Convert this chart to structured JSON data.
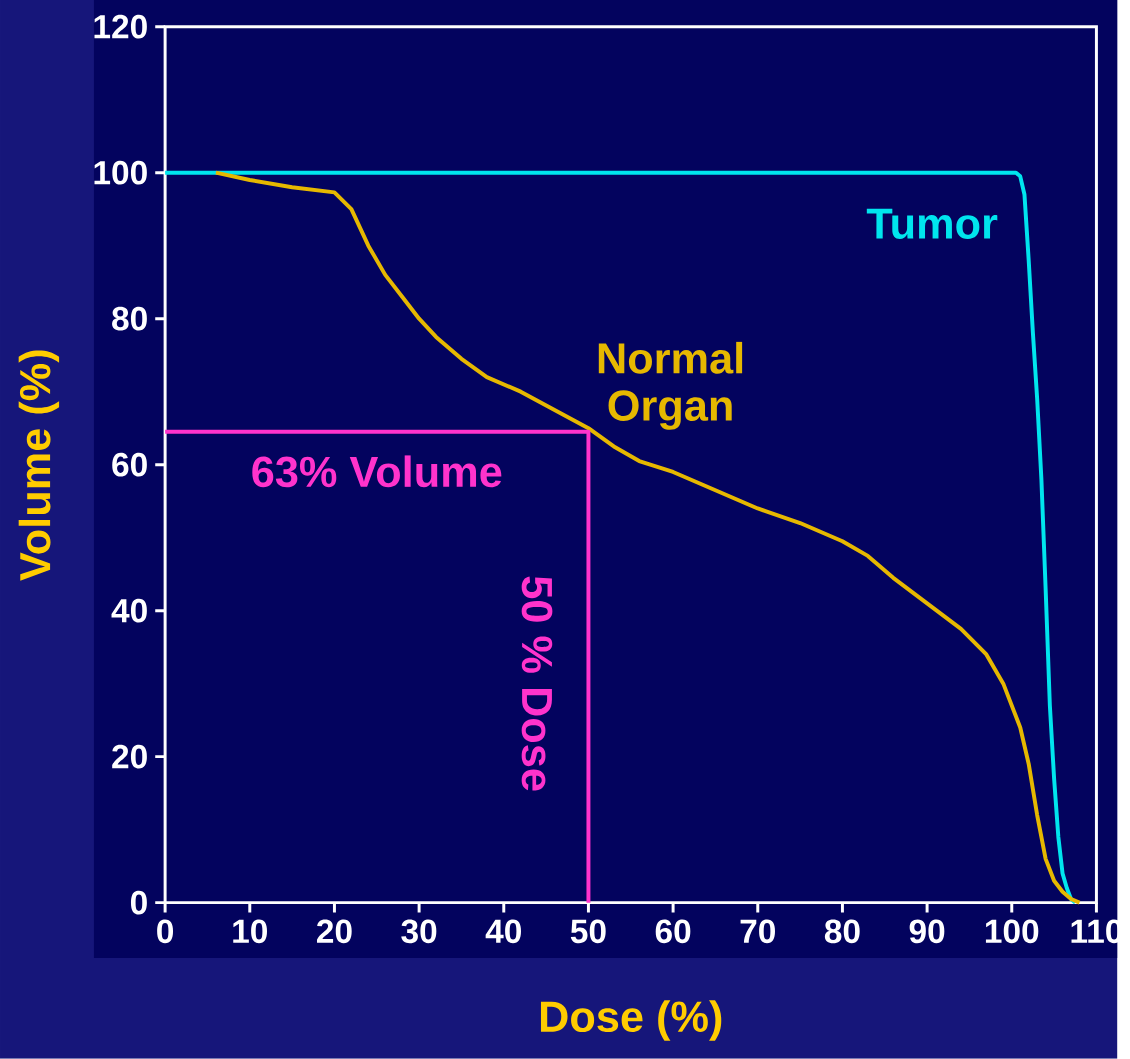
{
  "chart_data": {
    "type": "line",
    "xlabel": "Dose (%)",
    "ylabel": "Volume (%)",
    "xlim": [
      0,
      110
    ],
    "ylim": [
      0,
      120
    ],
    "xticks": [
      0,
      10,
      20,
      30,
      40,
      50,
      60,
      70,
      80,
      90,
      100,
      110
    ],
    "yticks": [
      0,
      20,
      40,
      60,
      80,
      100,
      120
    ],
    "grid": false,
    "series": [
      {
        "name": "Tumor",
        "color": "#00e5ee",
        "x": [
          0,
          100.5,
          101,
          101.5,
          102,
          102.5,
          103,
          103.5,
          104,
          104.5,
          105,
          105.5,
          106,
          106.5,
          107,
          107.5
        ],
        "values": [
          100,
          100,
          99.5,
          97,
          88,
          78,
          69,
          58,
          43,
          27,
          17,
          9,
          4,
          2,
          0.5,
          0
        ]
      },
      {
        "name": "Normal Organ",
        "color": "#e6b800",
        "x": [
          6,
          10,
          15,
          20,
          22,
          24,
          26,
          28,
          30,
          32,
          35,
          38,
          42,
          46,
          50,
          53,
          56,
          60,
          65,
          70,
          75,
          80,
          83,
          86,
          90,
          94,
          97,
          99,
          100,
          101,
          102,
          103,
          104,
          105,
          106,
          107,
          108
        ],
        "values": [
          100,
          99,
          98,
          97.3,
          95,
          90,
          86,
          83,
          80,
          77.5,
          74.5,
          72,
          70,
          67.5,
          65,
          62.5,
          60.5,
          59,
          56.5,
          54,
          52,
          49.5,
          47.5,
          44.5,
          41,
          37.5,
          34,
          30,
          27,
          24,
          19,
          12,
          6,
          3,
          1.5,
          0.5,
          0
        ]
      },
      {
        "color": "#ff33cc",
        "x": [
          0,
          50,
          50
        ],
        "values": [
          64.5,
          64.5,
          0
        ]
      }
    ],
    "annotations": [
      {
        "text": "63% Volume",
        "x": 25,
        "y": 64.5
      },
      {
        "text": "50 % Dose",
        "x": 50,
        "y": 30
      }
    ]
  }
}
